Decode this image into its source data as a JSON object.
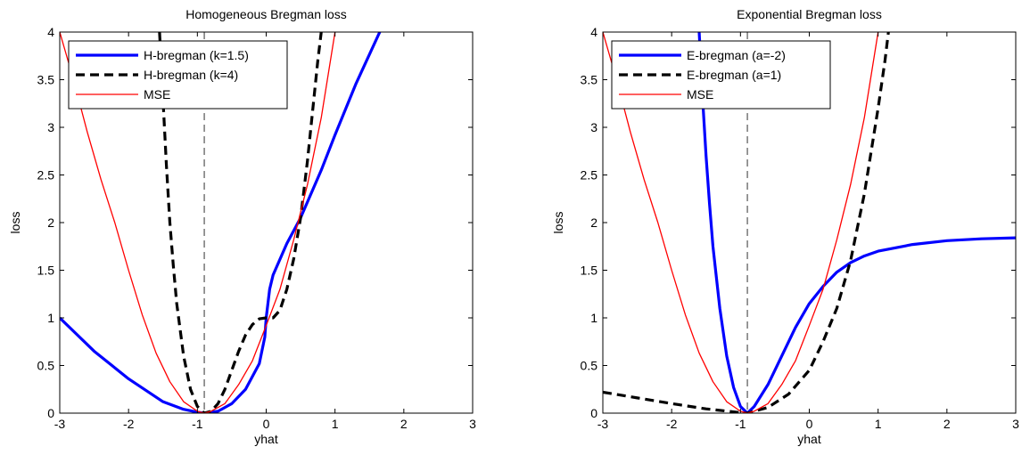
{
  "chart_data": [
    {
      "type": "line",
      "title": "Homogeneous Bregman loss",
      "xlabel": "yhat",
      "ylabel": "loss",
      "xlim": [
        -3,
        3
      ],
      "ylim": [
        0,
        4
      ],
      "xticks": [
        "-3",
        "-2",
        "-1",
        "0",
        "1",
        "2",
        "3"
      ],
      "yticks": [
        "0",
        "0.5",
        "1",
        "1.5",
        "2",
        "2.5",
        "3",
        "3.5",
        "4"
      ],
      "grid": false,
      "legend_position": "top-left",
      "vline_x": -0.9,
      "series": [
        {
          "name": "H-bregman (k=1.5)",
          "color": "#0000ff",
          "style": "solid-thick",
          "x": [
            -3,
            -2.5,
            -2,
            -1.5,
            -1.2,
            -1,
            -0.9,
            -0.7,
            -0.5,
            -0.3,
            -0.1,
            -0.02,
            0,
            0.05,
            0.1,
            0.3,
            0.5,
            0.8,
            1.0,
            1.3,
            1.65
          ],
          "y": [
            1.0,
            0.65,
            0.36,
            0.12,
            0.04,
            0.01,
            0.0,
            0.02,
            0.1,
            0.25,
            0.52,
            0.8,
            1.0,
            1.3,
            1.45,
            1.78,
            2.05,
            2.55,
            2.92,
            3.45,
            4.0
          ]
        },
        {
          "name": "H-bregman (k=4)",
          "color": "#000000",
          "style": "dashed-thick",
          "x": [
            -1.55,
            -1.5,
            -1.45,
            -1.4,
            -1.35,
            -1.3,
            -1.2,
            -1.1,
            -1.0,
            -0.9,
            -0.8,
            -0.7,
            -0.6,
            -0.5,
            -0.4,
            -0.3,
            -0.2,
            -0.1,
            0,
            0.1,
            0.2,
            0.3,
            0.4,
            0.5,
            0.6,
            0.7,
            0.75,
            0.8
          ],
          "y": [
            4.0,
            3.3,
            2.6,
            2.0,
            1.55,
            1.15,
            0.6,
            0.25,
            0.07,
            0.0,
            0.02,
            0.1,
            0.25,
            0.45,
            0.65,
            0.82,
            0.93,
            0.99,
            1.0,
            1.0,
            1.08,
            1.3,
            1.62,
            2.05,
            2.65,
            3.35,
            3.7,
            4.0
          ]
        },
        {
          "name": "MSE",
          "color": "#ff0000",
          "style": "solid-thin",
          "x": [
            -3,
            -2.8,
            -2.6,
            -2.4,
            -2.2,
            -2.0,
            -1.8,
            -1.6,
            -1.4,
            -1.2,
            -1.0,
            -0.9,
            -0.8,
            -0.6,
            -0.4,
            -0.2,
            0,
            0.2,
            0.4,
            0.6,
            0.8,
            1.0
          ],
          "y": [
            4.0,
            3.5,
            2.95,
            2.45,
            2.0,
            1.5,
            1.03,
            0.63,
            0.33,
            0.12,
            0.02,
            0.0,
            0.02,
            0.1,
            0.3,
            0.55,
            0.92,
            1.3,
            1.82,
            2.4,
            3.1,
            4.0
          ]
        }
      ]
    },
    {
      "type": "line",
      "title": "Exponential Bregman loss",
      "xlabel": "yhat",
      "ylabel": "loss",
      "xlim": [
        -3,
        3
      ],
      "ylim": [
        0,
        4
      ],
      "xticks": [
        "-3",
        "-2",
        "-1",
        "0",
        "1",
        "2",
        "3"
      ],
      "yticks": [
        "0",
        "0.5",
        "1",
        "1.5",
        "2",
        "2.5",
        "3",
        "3.5",
        "4"
      ],
      "grid": false,
      "legend_position": "top-left",
      "vline_x": -0.9,
      "series": [
        {
          "name": "E-bregman (a=-2)",
          "color": "#0000ff",
          "style": "solid-thick",
          "x": [
            -1.6,
            -1.55,
            -1.5,
            -1.45,
            -1.4,
            -1.3,
            -1.2,
            -1.1,
            -1.0,
            -0.9,
            -0.8,
            -0.6,
            -0.4,
            -0.2,
            0,
            0.2,
            0.4,
            0.6,
            0.8,
            1.0,
            1.5,
            2.0,
            2.5,
            3.0
          ],
          "y": [
            4.0,
            3.3,
            2.7,
            2.2,
            1.75,
            1.1,
            0.6,
            0.27,
            0.07,
            0.0,
            0.07,
            0.3,
            0.6,
            0.9,
            1.15,
            1.33,
            1.48,
            1.58,
            1.65,
            1.7,
            1.77,
            1.81,
            1.83,
            1.84
          ]
        },
        {
          "name": "E-bregman (a=1)",
          "color": "#000000",
          "style": "dashed-thick",
          "x": [
            -3,
            -2.5,
            -2,
            -1.5,
            -1.0,
            -0.9,
            -0.6,
            -0.3,
            0,
            0.2,
            0.4,
            0.6,
            0.8,
            1.0,
            1.1,
            1.15
          ],
          "y": [
            0.22,
            0.16,
            0.1,
            0.045,
            0.005,
            0.0,
            0.06,
            0.2,
            0.45,
            0.75,
            1.1,
            1.6,
            2.3,
            3.2,
            3.7,
            4.0
          ]
        },
        {
          "name": "MSE",
          "color": "#ff0000",
          "style": "solid-thin",
          "x": [
            -3,
            -2.8,
            -2.6,
            -2.4,
            -2.2,
            -2.0,
            -1.8,
            -1.6,
            -1.4,
            -1.2,
            -1.0,
            -0.9,
            -0.8,
            -0.6,
            -0.4,
            -0.2,
            0,
            0.2,
            0.4,
            0.6,
            0.8,
            1.0
          ],
          "y": [
            4.0,
            3.5,
            2.95,
            2.45,
            2.0,
            1.5,
            1.03,
            0.63,
            0.33,
            0.12,
            0.02,
            0.0,
            0.02,
            0.1,
            0.3,
            0.55,
            0.92,
            1.3,
            1.82,
            2.4,
            3.1,
            4.0
          ]
        }
      ]
    }
  ]
}
